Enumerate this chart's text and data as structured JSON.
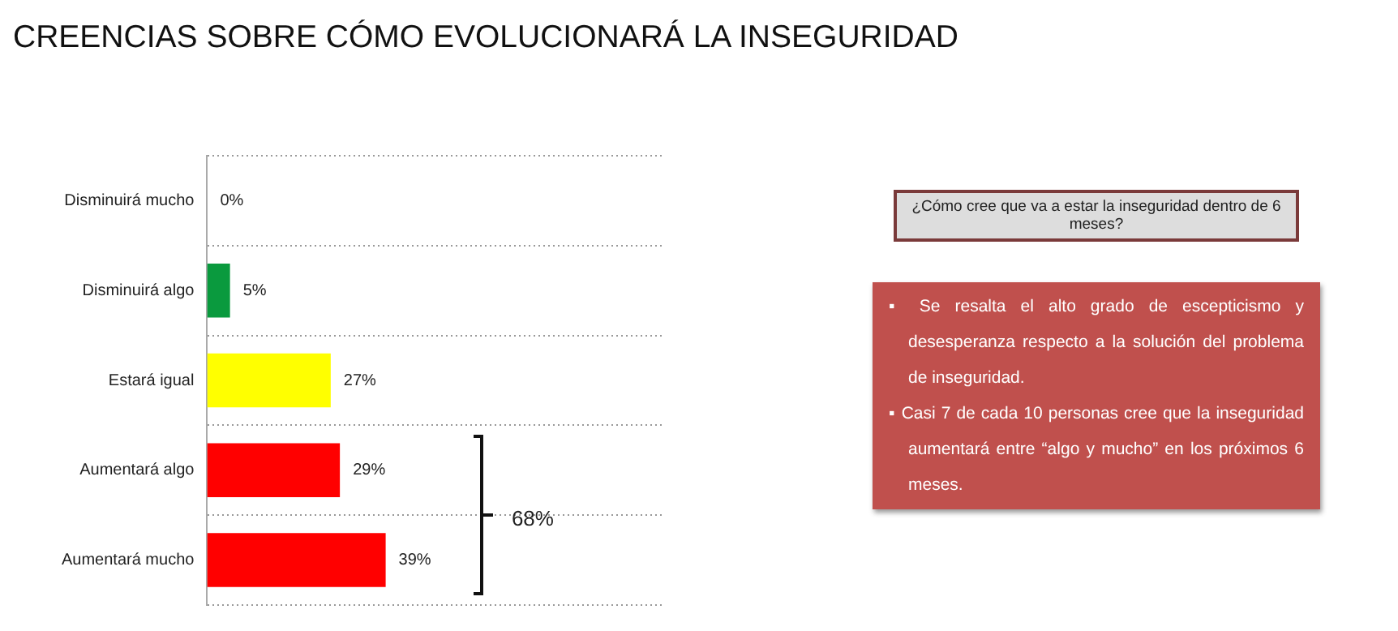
{
  "chart_data": {
    "type": "bar",
    "orientation": "horizontal",
    "title": "CREENCIAS SOBRE CÓMO EVOLUCIONARÁ LA INSEGURIDAD",
    "categories": [
      "Disminuirá mucho",
      "Disminuirá algo",
      "Estará igual",
      "Aumentará algo",
      "Aumentará mucho"
    ],
    "values": [
      0,
      5,
      27,
      29,
      39
    ],
    "colors": [
      "#0a9a3e",
      "#0a9a3e",
      "#ffff00",
      "#ff0000",
      "#ff0000"
    ],
    "value_labels": [
      "0%",
      "5%",
      "27%",
      "29%",
      "39%"
    ],
    "xlim": [
      0,
      100
    ],
    "tick_labels": "y",
    "grid": "y",
    "legend": false,
    "annotations": [
      "68%",
      "¿Cómo cree que va a estar la inseguridad dentro de 6 meses?",
      "▪ Se resalta el alto grado de escepticismo y desesperanza respecto a la solución del problema de inseguridad.",
      "▪ Casi 7 de cada 10 personas cree que la inseguridad aumentará entre “algo y mucho” en los próximos 6 meses."
    ]
  }
}
